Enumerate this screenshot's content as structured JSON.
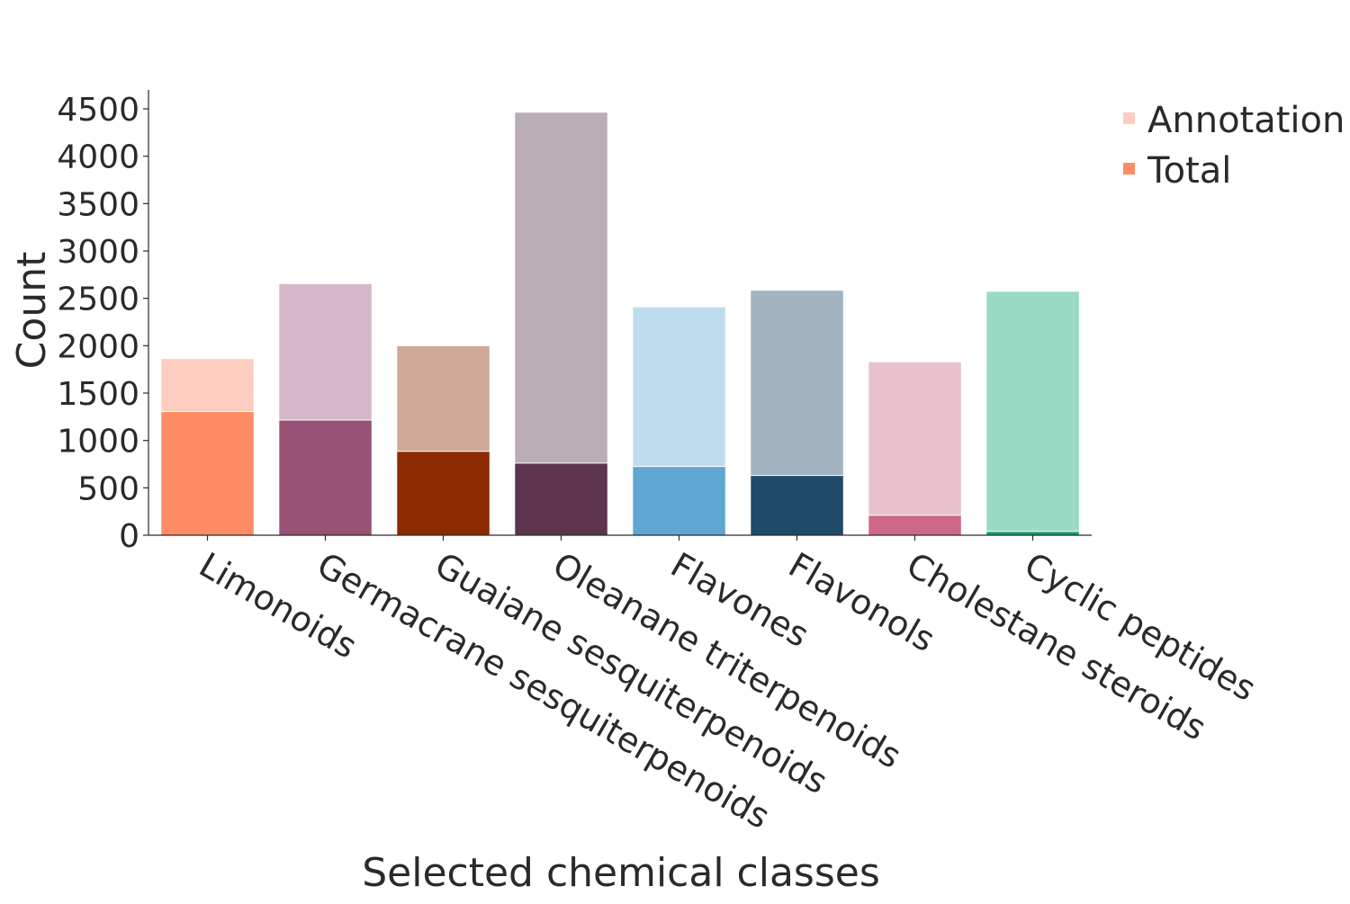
{
  "chart_data": {
    "type": "bar",
    "xlabel": "Selected chemical classes",
    "ylabel": "Count",
    "ylim": [
      0,
      4700
    ],
    "yticks": [
      0,
      500,
      1000,
      1500,
      2000,
      2500,
      3000,
      3500,
      4000,
      4500
    ],
    "categories": [
      "Limonoids",
      "Germacrane sesquiterpenoids",
      "Guaiane sesquiterpenoids",
      "Oleanane triterpenoids",
      "Flavones",
      "Flavonols",
      "Cholestane steroids",
      "Cyclic peptides"
    ],
    "series": [
      {
        "name": "Annotation",
        "values": [
          1865,
          2655,
          2000,
          4465,
          2410,
          2585,
          1830,
          2575
        ],
        "colors": [
          "#ffcdbf",
          "#d5b8c8",
          "#cfa897",
          "#bbadb5",
          "#bfdcee",
          "#a2b4c1",
          "#e8c2cc",
          "#99dbc5"
        ]
      },
      {
        "name": "Total",
        "values": [
          1305,
          1215,
          885,
          760,
          725,
          630,
          210,
          40
        ],
        "colors": [
          "#ff8c64",
          "#975276",
          "#8c2a02",
          "#5c344e",
          "#5fa7d2",
          "#1f4a69",
          "#cd6886",
          "#139e6e"
        ]
      }
    ],
    "legend_position": "top-right",
    "grid": false,
    "overlay": true
  }
}
